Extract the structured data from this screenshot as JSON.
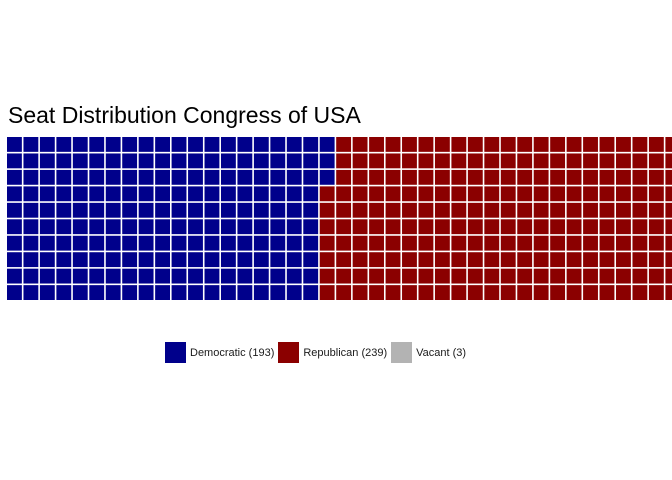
{
  "chart_data": {
    "type": "waffle",
    "title": "Seat Distribution Congress of USA",
    "rows": 10,
    "order": "column-major",
    "categories": [
      {
        "name": "Democratic",
        "label": "Democratic (193)",
        "value": 193,
        "color": "#00008b"
      },
      {
        "name": "Republican",
        "label": "Republican (239)",
        "value": 239,
        "color": "#8b0000"
      },
      {
        "name": "Vacant",
        "label": "Vacant (3)",
        "value": 3,
        "color": "#b3b3b3"
      }
    ],
    "legend_position": "bottom"
  }
}
